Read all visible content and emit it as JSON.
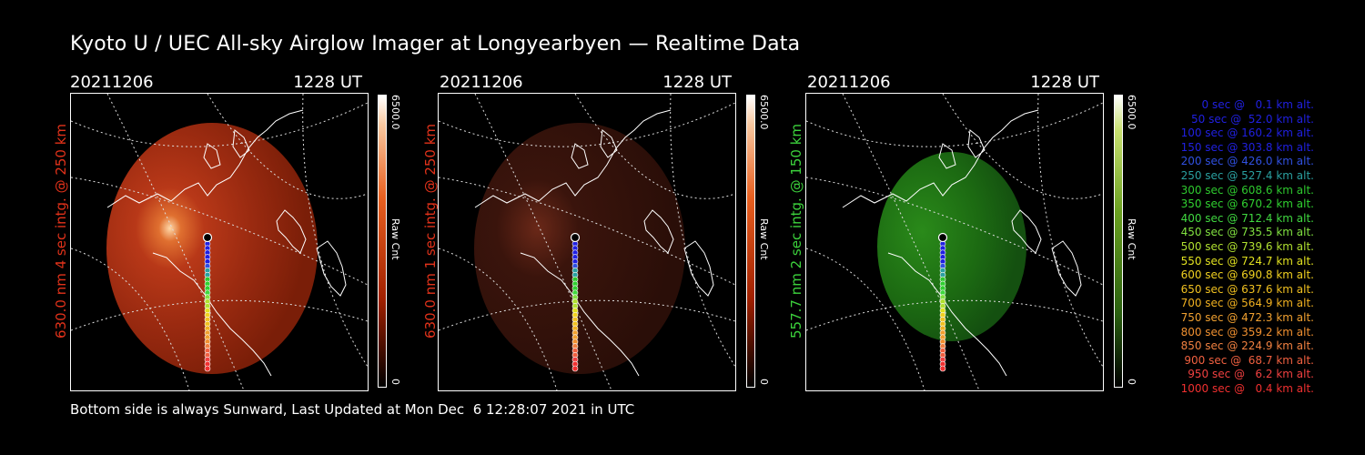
{
  "title": "Kyoto U / UEC All-sky Airglow Imager at Longyearbyen — Realtime Data",
  "panels": [
    {
      "date": "20211206",
      "time": "1228 UT",
      "label": "630.0 nm 4 sec intg. @ 250 km",
      "label_color": "#e2321a",
      "cbar_max": "6500.0",
      "cbar_unit": "Raw Cnt",
      "cbar_min": "0",
      "scheme": "red",
      "brightness": 1.0
    },
    {
      "date": "20211206",
      "time": "1228 UT",
      "label": "630.0 nm 1 sec intg. @ 250 km",
      "label_color": "#e2321a",
      "cbar_max": "6500.0",
      "cbar_unit": "Raw Cnt",
      "cbar_min": "0",
      "scheme": "red",
      "brightness": 0.35
    },
    {
      "date": "20211206",
      "time": "1228 UT",
      "label": "557.7 nm 2 sec intg. @ 150 km",
      "label_color": "#3cd23c",
      "cbar_max": "6500.0",
      "cbar_unit": "Raw Cnt",
      "cbar_min": "0",
      "scheme": "green",
      "brightness": 0.6
    }
  ],
  "legend": [
    {
      "text": "0 sec @   0.1 km alt.",
      "color": "#2020e0"
    },
    {
      "text": "50 sec @  52.0 km alt.",
      "color": "#2020e0"
    },
    {
      "text": "100 sec @ 160.2 km alt.",
      "color": "#2020e0"
    },
    {
      "text": "150 sec @ 303.8 km alt.",
      "color": "#2020e0"
    },
    {
      "text": "200 sec @ 426.0 km alt.",
      "color": "#3050e0"
    },
    {
      "text": "250 sec @ 527.4 km alt.",
      "color": "#2aa0a0"
    },
    {
      "text": "300 sec @ 608.6 km alt.",
      "color": "#2ec82e"
    },
    {
      "text": "350 sec @ 670.2 km alt.",
      "color": "#30d030"
    },
    {
      "text": "400 sec @ 712.4 km alt.",
      "color": "#40d840"
    },
    {
      "text": "450 sec @ 735.5 km alt.",
      "color": "#80e040"
    },
    {
      "text": "500 sec @ 739.6 km alt.",
      "color": "#b0e030"
    },
    {
      "text": "550 sec @ 724.7 km alt.",
      "color": "#e0e020"
    },
    {
      "text": "600 sec @ 690.8 km alt.",
      "color": "#f0d020"
    },
    {
      "text": "650 sec @ 637.6 km alt.",
      "color": "#f0c020"
    },
    {
      "text": "700 sec @ 564.9 km alt.",
      "color": "#f0b020"
    },
    {
      "text": "750 sec @ 472.3 km alt.",
      "color": "#f0a030"
    },
    {
      "text": "800 sec @ 359.2 km alt.",
      "color": "#f09030"
    },
    {
      "text": "850 sec @ 224.9 km alt.",
      "color": "#f08040"
    },
    {
      "text": "900 sec @  68.7 km alt.",
      "color": "#f06040"
    },
    {
      "text": "950 sec @   6.2 km alt.",
      "color": "#f04040"
    },
    {
      "text": "1000 sec @   0.4 km alt.",
      "color": "#f03030"
    }
  ],
  "footer": "Bottom side is always Sunward, Last Updated at Mon Dec  6 12:28:07 2021 in UTC"
}
